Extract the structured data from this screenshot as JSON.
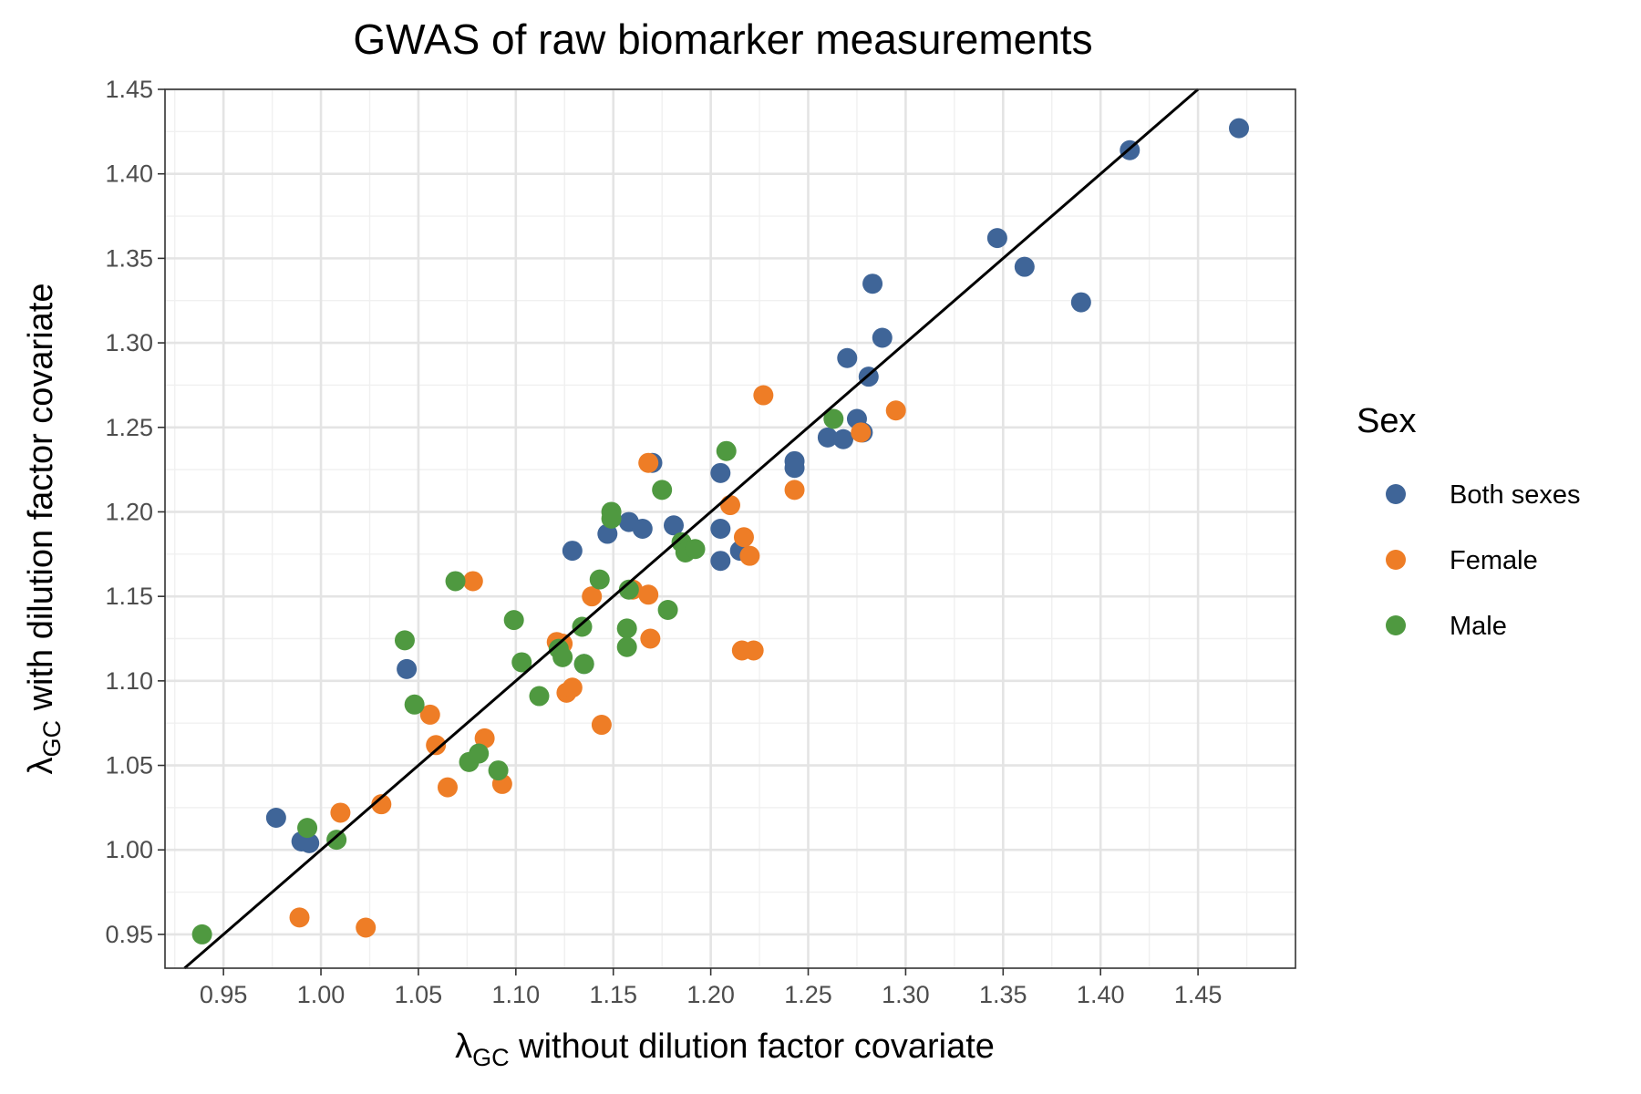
{
  "chart_data": {
    "type": "scatter",
    "title": "GWAS of raw biomarker measurements",
    "xlabel": {
      "symbol": "λ",
      "subscript": "GC",
      "text": " without dilution factor covariate"
    },
    "ylabel": {
      "symbol": "λ",
      "subscript": "GC",
      "text": " with dilution factor covariate"
    },
    "xlim": [
      0.92,
      1.5
    ],
    "ylim": [
      0.93,
      1.45
    ],
    "x_ticks": [
      "0.95",
      "1.00",
      "1.05",
      "1.10",
      "1.15",
      "1.20",
      "1.25",
      "1.30",
      "1.35",
      "1.40",
      "1.45"
    ],
    "y_ticks": [
      "0.95",
      "1.00",
      "1.05",
      "1.10",
      "1.15",
      "1.20",
      "1.25",
      "1.30",
      "1.35",
      "1.40",
      "1.45"
    ],
    "grid": true,
    "reference_line": "y = x",
    "legend": {
      "title": "Sex",
      "position": "right"
    },
    "series": [
      {
        "name": "Both sexes",
        "color": "#3f6598",
        "points": [
          [
            0.977,
            1.019
          ],
          [
            0.99,
            1.005
          ],
          [
            0.994,
            1.004
          ],
          [
            1.044,
            1.107
          ],
          [
            1.129,
            1.177
          ],
          [
            1.135,
            1.11
          ],
          [
            1.147,
            1.187
          ],
          [
            1.158,
            1.194
          ],
          [
            1.165,
            1.19
          ],
          [
            1.17,
            1.229
          ],
          [
            1.181,
            1.192
          ],
          [
            1.205,
            1.223
          ],
          [
            1.205,
            1.19
          ],
          [
            1.205,
            1.171
          ],
          [
            1.215,
            1.177
          ],
          [
            1.243,
            1.23
          ],
          [
            1.243,
            1.226
          ],
          [
            1.26,
            1.244
          ],
          [
            1.268,
            1.243
          ],
          [
            1.27,
            1.291
          ],
          [
            1.275,
            1.255
          ],
          [
            1.278,
            1.247
          ],
          [
            1.281,
            1.28
          ],
          [
            1.283,
            1.335
          ],
          [
            1.288,
            1.303
          ],
          [
            1.347,
            1.362
          ],
          [
            1.361,
            1.345
          ],
          [
            1.39,
            1.324
          ],
          [
            1.415,
            1.414
          ],
          [
            1.471,
            1.427
          ]
        ]
      },
      {
        "name": "Female",
        "color": "#ee7d26",
        "points": [
          [
            0.989,
            0.96
          ],
          [
            1.01,
            1.022
          ],
          [
            1.023,
            0.954
          ],
          [
            1.031,
            1.027
          ],
          [
            1.056,
            1.08
          ],
          [
            1.059,
            1.062
          ],
          [
            1.065,
            1.037
          ],
          [
            1.078,
            1.159
          ],
          [
            1.084,
            1.066
          ],
          [
            1.093,
            1.039
          ],
          [
            1.121,
            1.123
          ],
          [
            1.124,
            1.122
          ],
          [
            1.126,
            1.093
          ],
          [
            1.129,
            1.096
          ],
          [
            1.139,
            1.15
          ],
          [
            1.144,
            1.074
          ],
          [
            1.16,
            1.154
          ],
          [
            1.168,
            1.151
          ],
          [
            1.168,
            1.229
          ],
          [
            1.169,
            1.125
          ],
          [
            1.21,
            1.204
          ],
          [
            1.216,
            1.118
          ],
          [
            1.217,
            1.185
          ],
          [
            1.22,
            1.174
          ],
          [
            1.222,
            1.118
          ],
          [
            1.227,
            1.269
          ],
          [
            1.243,
            1.213
          ],
          [
            1.277,
            1.247
          ],
          [
            1.295,
            1.26
          ]
        ]
      },
      {
        "name": "Male",
        "color": "#4f9940",
        "points": [
          [
            0.939,
            0.95
          ],
          [
            0.993,
            1.013
          ],
          [
            1.008,
            1.006
          ],
          [
            1.043,
            1.124
          ],
          [
            1.048,
            1.086
          ],
          [
            1.069,
            1.159
          ],
          [
            1.076,
            1.052
          ],
          [
            1.081,
            1.057
          ],
          [
            1.091,
            1.047
          ],
          [
            1.099,
            1.136
          ],
          [
            1.103,
            1.111
          ],
          [
            1.112,
            1.091
          ],
          [
            1.122,
            1.119
          ],
          [
            1.124,
            1.114
          ],
          [
            1.134,
            1.132
          ],
          [
            1.135,
            1.11
          ],
          [
            1.143,
            1.16
          ],
          [
            1.149,
            1.2
          ],
          [
            1.149,
            1.196
          ],
          [
            1.157,
            1.131
          ],
          [
            1.157,
            1.12
          ],
          [
            1.158,
            1.154
          ],
          [
            1.175,
            1.213
          ],
          [
            1.178,
            1.142
          ],
          [
            1.185,
            1.182
          ],
          [
            1.187,
            1.176
          ],
          [
            1.192,
            1.178
          ],
          [
            1.208,
            1.236
          ],
          [
            1.263,
            1.255
          ]
        ]
      }
    ]
  }
}
